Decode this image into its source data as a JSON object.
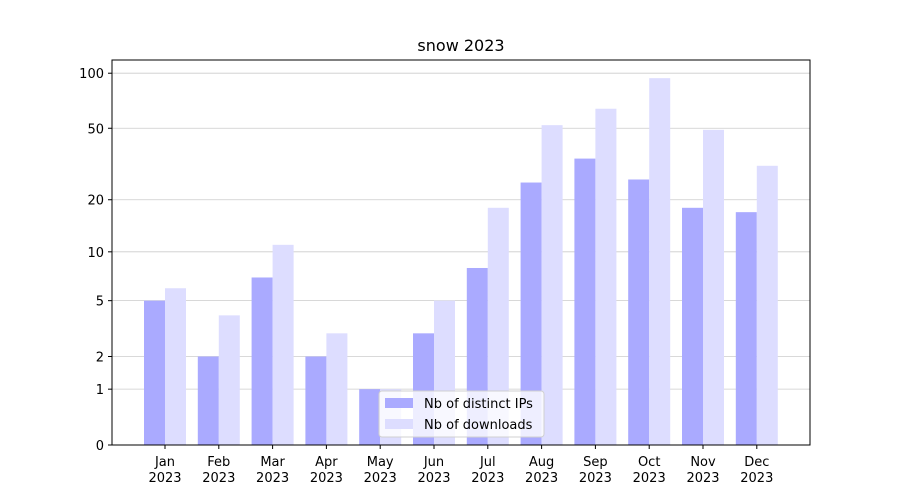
{
  "chart_data": {
    "type": "bar",
    "title": "snow 2023",
    "categories": [
      "Jan\n2023",
      "Feb\n2023",
      "Mar\n2023",
      "Apr\n2023",
      "May\n2023",
      "Jun\n2023",
      "Jul\n2023",
      "Aug\n2023",
      "Sep\n2023",
      "Oct\n2023",
      "Nov\n2023",
      "Dec\n2023"
    ],
    "series": [
      {
        "name": "Nb of distinct IPs",
        "color": "#aaaaff",
        "values": [
          5,
          2,
          7,
          2,
          1,
          3,
          8,
          25,
          34,
          26,
          18,
          17
        ]
      },
      {
        "name": "Nb of downloads",
        "color": "#ddddff",
        "values": [
          6,
          4,
          11,
          3,
          1,
          5,
          18,
          52,
          64,
          94,
          49,
          31
        ]
      }
    ],
    "yscale": "log1p",
    "ylim": [
      0,
      118
    ],
    "yticks": [
      0,
      1,
      2,
      5,
      10,
      20,
      50,
      100
    ],
    "grid": true,
    "legend": "lower center"
  }
}
